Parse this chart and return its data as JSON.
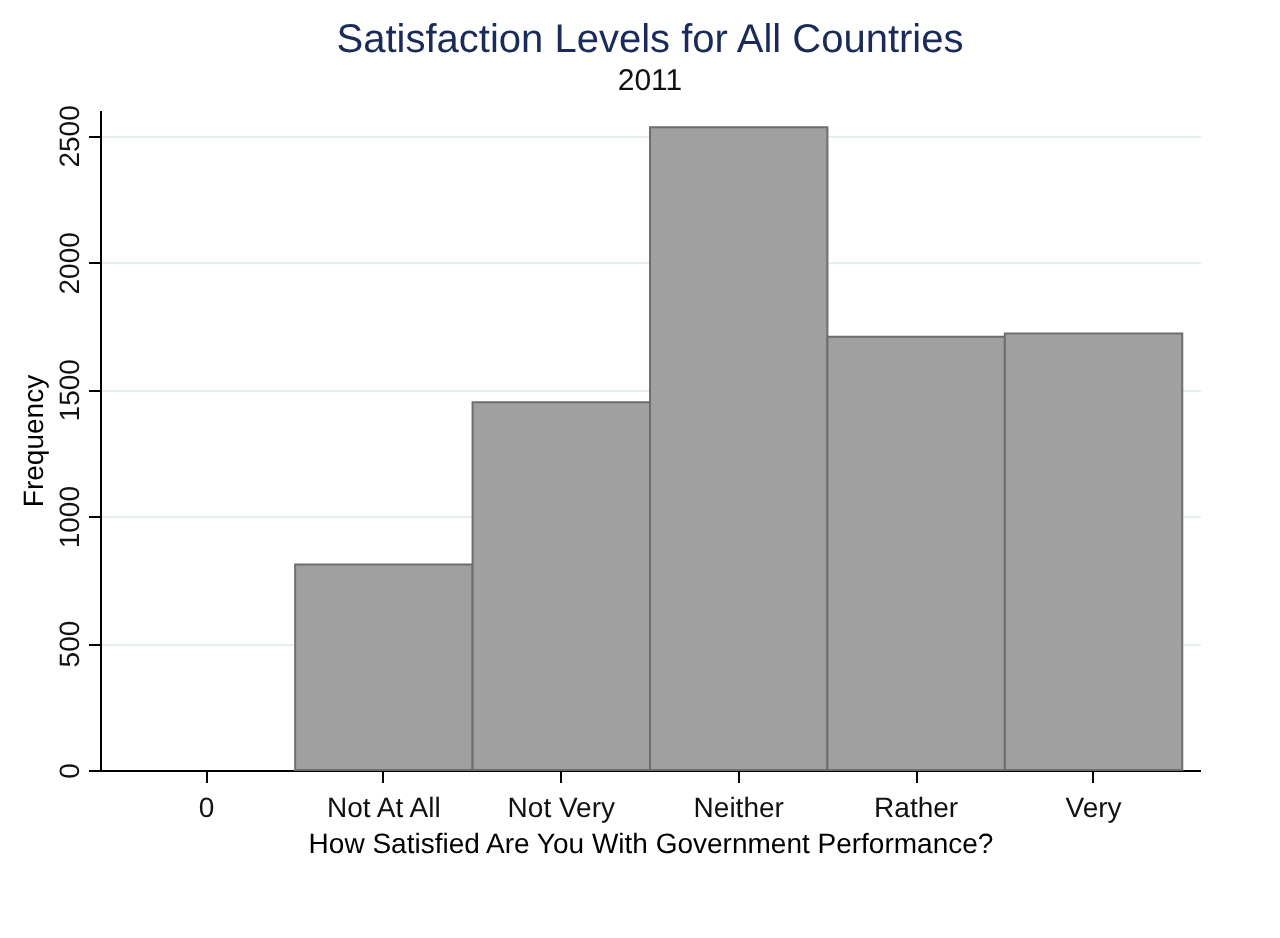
{
  "chart_data": {
    "type": "bar",
    "title": "Satisfaction Levels for All Countries",
    "subtitle": "2011",
    "xlabel": "How Satisfied Are You With Government Performance?",
    "ylabel": "Frequency",
    "categories": [
      "0",
      "Not At All",
      "Not Very",
      "Neither",
      "Rather",
      "Very"
    ],
    "values": [
      null,
      810,
      1449,
      2532,
      1707,
      1720
    ],
    "color": "#a0a0a0",
    "ylim": [
      0,
      2600
    ],
    "yticks": [
      0,
      500,
      1000,
      1500,
      2000,
      2500
    ],
    "grid": "y"
  }
}
